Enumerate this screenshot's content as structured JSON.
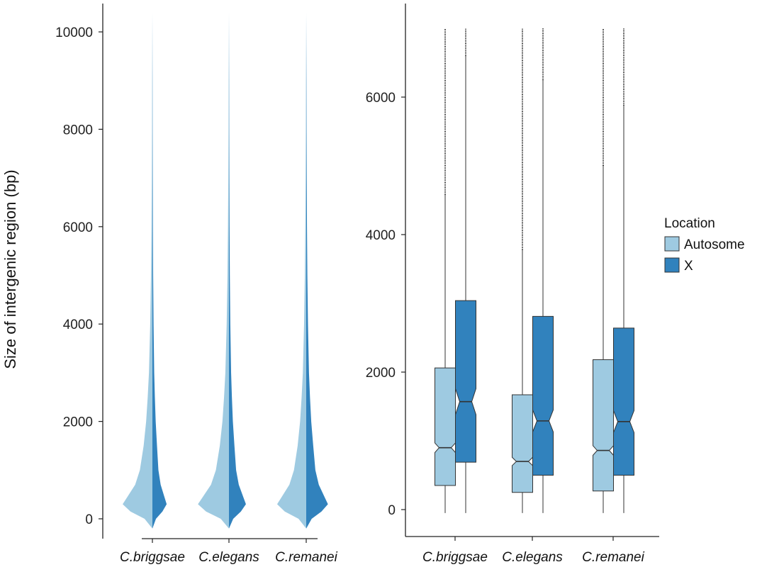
{
  "colors": {
    "autosome": "#9ecae1",
    "x": "#3182bd",
    "axis": "#222222",
    "box_stroke": "#333333"
  },
  "chart_data": [
    {
      "type": "violin",
      "ylabel": "Size of intergenic region (bp)",
      "ylim": [
        0,
        10400
      ],
      "yticks": [
        0,
        2000,
        4000,
        6000,
        8000,
        10000
      ],
      "categories": [
        "C.briggsae",
        "C.elegans",
        "C.remanei"
      ],
      "split_by": [
        "Autosome",
        "X"
      ],
      "note_shape": "Split violins: left half Autosome, right half X; density peaks near 200-400 bp with long tails to ~10400 bp",
      "density_profile": [
        {
          "y": -200,
          "w": 0.0
        },
        {
          "y": 0,
          "w": 0.25
        },
        {
          "y": 150,
          "w": 0.7
        },
        {
          "y": 300,
          "w": 0.95
        },
        {
          "y": 450,
          "w": 0.8
        },
        {
          "y": 700,
          "w": 0.55
        },
        {
          "y": 1000,
          "w": 0.4
        },
        {
          "y": 1500,
          "w": 0.28
        },
        {
          "y": 2000,
          "w": 0.2
        },
        {
          "y": 2500,
          "w": 0.15
        },
        {
          "y": 3000,
          "w": 0.11
        },
        {
          "y": 4000,
          "w": 0.07
        },
        {
          "y": 5000,
          "w": 0.045
        },
        {
          "y": 6000,
          "w": 0.03
        },
        {
          "y": 7000,
          "w": 0.02
        },
        {
          "y": 8000,
          "w": 0.013
        },
        {
          "y": 9000,
          "w": 0.009
        },
        {
          "y": 10400,
          "w": 0.0
        }
      ]
    },
    {
      "type": "boxplot",
      "notched": true,
      "ylim": [
        -100,
        7100
      ],
      "yticks": [
        0,
        2000,
        4000,
        6000
      ],
      "categories": [
        "C.briggsae",
        "C.elegans",
        "C.remanei"
      ],
      "legend": {
        "title": "Location",
        "entries": [
          "Autosome",
          "X"
        ],
        "placement": "right"
      },
      "series": [
        {
          "name": "Autosome",
          "boxes": [
            {
              "min": -50,
              "q1": 350,
              "median": 900,
              "q3": 2060,
              "whisker_high": 4580,
              "outliers_to": 7000,
              "notch_low": 830,
              "notch_high": 970
            },
            {
              "min": -50,
              "q1": 250,
              "median": 700,
              "q3": 1670,
              "whisker_high": 3780,
              "outliers_to": 7000,
              "notch_low": 640,
              "notch_high": 760
            },
            {
              "min": -50,
              "q1": 270,
              "median": 860,
              "q3": 2180,
              "whisker_high": 5000,
              "outliers_to": 7000,
              "notch_low": 790,
              "notch_high": 930
            }
          ]
        },
        {
          "name": "X",
          "boxes": [
            {
              "min": -50,
              "q1": 690,
              "median": 1570,
              "q3": 3040,
              "whisker_high": 6600,
              "outliers_to": 7000,
              "notch_low": 1380,
              "notch_high": 1760
            },
            {
              "min": -50,
              "q1": 500,
              "median": 1290,
              "q3": 2810,
              "whisker_high": 6250,
              "outliers_to": 7000,
              "notch_low": 1130,
              "notch_high": 1450
            },
            {
              "min": -50,
              "q1": 500,
              "median": 1280,
              "q3": 2640,
              "whisker_high": 5880,
              "outliers_to": 7000,
              "notch_low": 1120,
              "notch_high": 1440
            }
          ]
        }
      ]
    }
  ]
}
